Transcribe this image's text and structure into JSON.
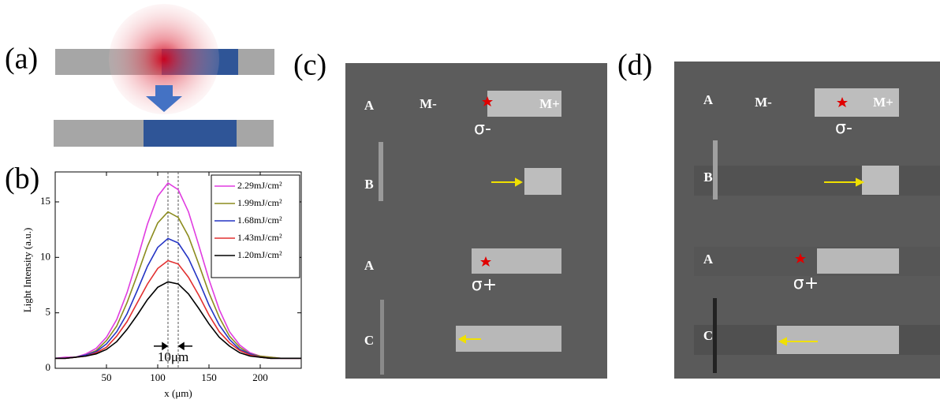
{
  "panel_labels": [
    "(a)",
    "(b)",
    "(c)",
    "(d)"
  ],
  "chart_data": {
    "type": "line",
    "x_label": "x (μm)",
    "y_label": "Light Intensity (a.u.)",
    "annotation": "10μm",
    "x": [
      0,
      10,
      20,
      30,
      40,
      50,
      60,
      70,
      80,
      90,
      100,
      110,
      120,
      130,
      140,
      150,
      160,
      170,
      180,
      190,
      200,
      210,
      220,
      230,
      240
    ],
    "series": [
      {
        "name": "2.29mJ/cm²",
        "color": "#e03ce0",
        "values": [
          0.9,
          1.0,
          1.0,
          1.3,
          1.8,
          2.8,
          4.4,
          6.8,
          9.8,
          13.0,
          15.5,
          16.7,
          16.1,
          14.1,
          11.1,
          8.0,
          5.3,
          3.3,
          2.1,
          1.4,
          1.1,
          1.0,
          0.9,
          0.9,
          0.9
        ]
      },
      {
        "name": "1.99mJ/cm²",
        "color": "#8c8c1e",
        "values": [
          0.9,
          0.9,
          1.0,
          1.2,
          1.6,
          2.5,
          3.8,
          5.9,
          8.4,
          11.0,
          13.1,
          14.1,
          13.6,
          11.9,
          9.4,
          6.8,
          4.6,
          2.9,
          1.9,
          1.3,
          1.1,
          1.0,
          0.9,
          0.9,
          0.9
        ]
      },
      {
        "name": "1.68mJ/cm²",
        "color": "#2434c4",
        "values": [
          0.9,
          0.9,
          1.0,
          1.2,
          1.5,
          2.2,
          3.3,
          4.9,
          7.0,
          9.2,
          10.9,
          11.7,
          11.3,
          9.9,
          7.9,
          5.7,
          3.9,
          2.6,
          1.7,
          1.3,
          1.0,
          0.9,
          0.9,
          0.9,
          0.9
        ]
      },
      {
        "name": "1.43mJ/cm²",
        "color": "#e23030",
        "values": [
          0.9,
          0.9,
          1.0,
          1.1,
          1.4,
          1.9,
          2.9,
          4.2,
          5.9,
          7.6,
          9.0,
          9.7,
          9.4,
          8.2,
          6.6,
          4.8,
          3.3,
          2.3,
          1.6,
          1.2,
          1.0,
          0.9,
          0.9,
          0.9,
          0.9
        ]
      },
      {
        "name": "1.20mJ/cm²",
        "color": "#000000",
        "values": [
          0.9,
          0.9,
          1.0,
          1.1,
          1.3,
          1.7,
          2.4,
          3.5,
          4.8,
          6.2,
          7.3,
          7.8,
          7.6,
          6.7,
          5.4,
          4.0,
          2.8,
          2.0,
          1.4,
          1.1,
          1.0,
          0.9,
          0.9,
          0.9,
          0.9
        ]
      }
    ],
    "vlines": [
      110,
      120
    ],
    "xlim": [
      0,
      240
    ],
    "ylim": [
      0,
      17.7
    ],
    "xticks": [
      50,
      100,
      150,
      200
    ],
    "yticks": [
      0,
      5,
      10,
      15
    ],
    "legend": "upper right"
  },
  "micrographs": [
    {
      "rows": [
        "A",
        "B",
        "A",
        "C"
      ],
      "m_minus": "M-",
      "m_plus": "M+",
      "sigma_minus": "σ-",
      "sigma_plus": "σ+"
    },
    {
      "rows": [
        "A",
        "B",
        "A",
        "C"
      ],
      "m_minus": "M-",
      "m_plus": "M+",
      "sigma_minus": "σ-",
      "sigma_plus": "σ+"
    }
  ]
}
